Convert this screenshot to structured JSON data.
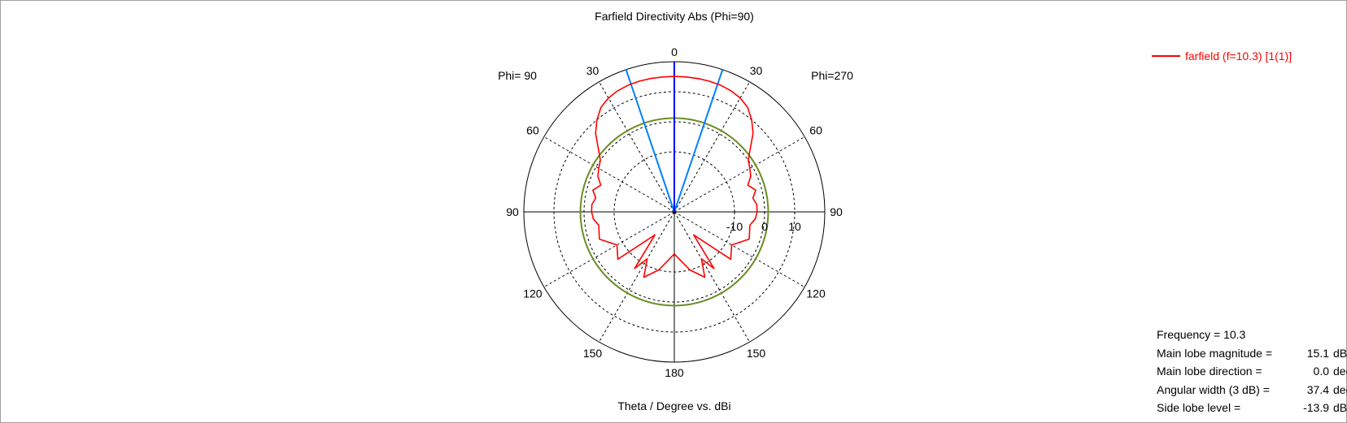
{
  "colors": {
    "background": "#ffffff",
    "grid_dotted": "#000000",
    "main_trace": "#ff0000",
    "main_lobe_axis": "#0000ff",
    "beamwidth_lines": "#0080ff",
    "side_lobe_circle": "#6b8e23"
  },
  "chart_data": {
    "type": "polar",
    "title": "Farfield Directivity Abs (Phi=90)",
    "xlabel": "Theta / Degree vs. dBi",
    "left_half_label": "Phi= 90",
    "right_half_label": "Phi=270",
    "angle_labels_left": [
      "0",
      "30",
      "60",
      "90",
      "120",
      "150",
      "180"
    ],
    "angle_labels_right": [
      "30",
      "60",
      "90",
      "120",
      "150"
    ],
    "angle_values": [
      0,
      30,
      60,
      90,
      120,
      150,
      180
    ],
    "radial_ticks": [
      "-10",
      "0",
      "10"
    ],
    "radial_tick_values": [
      -10,
      0,
      10
    ],
    "radial_range_dB": [
      -30,
      20
    ],
    "grid": true,
    "legend_position": "top-right",
    "series": [
      {
        "name": "farfield (f=10.3) [1(1)]",
        "theta_deg": [
          -180,
          -165,
          -155,
          -150,
          -145,
          -140,
          -130,
          -120,
          -110,
          -100,
          -95,
          -90,
          -85,
          -80,
          -75,
          -70,
          -65,
          -60,
          -55,
          -50,
          -45,
          -40,
          -35,
          -30,
          -25,
          -20,
          -15,
          -10,
          -5,
          0,
          5,
          10,
          15,
          20,
          25,
          30,
          35,
          40,
          45,
          50,
          55,
          60,
          65,
          70,
          75,
          80,
          85,
          90,
          95,
          100,
          110,
          120,
          130,
          140,
          145,
          150,
          155,
          165,
          180
        ],
        "dBi": [
          -16,
          -10,
          -6,
          -12,
          -7,
          -20,
          -5.5,
          -8,
          -3.5,
          -4.5,
          -3,
          -2.5,
          -2.5,
          -3.5,
          -2,
          -4,
          -2,
          -1,
          0,
          3,
          7,
          10,
          12.5,
          13.8,
          14.5,
          14.9,
          15.05,
          15.1,
          15.1,
          15.1,
          15.1,
          15.1,
          15.05,
          14.9,
          14.5,
          13.8,
          12.5,
          10,
          7,
          3,
          0,
          -1,
          -2,
          -4,
          -2,
          -3.5,
          -2.5,
          -2.5,
          -3,
          -4.5,
          -3.5,
          -8,
          -5.5,
          -20,
          -7,
          -12,
          -6,
          -10,
          -16
        ]
      }
    ],
    "main_lobe_direction_deg": 0.0,
    "beamwidth_3dB_deg": 37.4,
    "side_lobe_circle_dBi": 1.2
  },
  "info": [
    {
      "label": "Frequency = 10.3",
      "value": "",
      "unit": ""
    },
    {
      "label": "Main lobe magnitude =",
      "value": "15.1",
      "unit": "dBi"
    },
    {
      "label": "Main lobe direction =",
      "value": "0.0",
      "unit": "deg."
    },
    {
      "label": "Angular width (3 dB) =",
      "value": "37.4",
      "unit": "deg."
    },
    {
      "label": "Side lobe level =",
      "value": "-13.9",
      "unit": "dB"
    }
  ]
}
